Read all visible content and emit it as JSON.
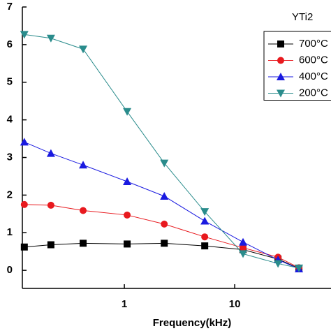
{
  "chart_data": {
    "type": "line",
    "annotation": "YTi2",
    "xlabel": "Frequency(kHz)",
    "xscale": "log",
    "x": [
      0.124,
      0.216,
      0.423,
      1.06,
      2.3,
      5.35,
      11.9,
      24.7,
      38.2
    ],
    "xlim": [
      0.119,
      74.6
    ],
    "xticks": [
      1,
      10
    ],
    "ylim": [
      -0.48,
      7
    ],
    "yticks": [
      0,
      1,
      2,
      3,
      4,
      5,
      6,
      7
    ],
    "legend": "upper right",
    "series": [
      {
        "name": "700°C",
        "color": "#000000",
        "marker": "square",
        "values": [
          0.62,
          0.68,
          0.72,
          0.7,
          0.72,
          0.65,
          0.55,
          0.3,
          0.05
        ]
      },
      {
        "name": "600°C",
        "color": "#e8191e",
        "marker": "circle",
        "values": [
          1.75,
          1.73,
          1.59,
          1.47,
          1.23,
          0.89,
          0.6,
          0.35,
          0.07
        ]
      },
      {
        "name": "400°C",
        "color": "#1a1ae0",
        "marker": "triangle-up",
        "values": [
          3.41,
          3.11,
          2.8,
          2.36,
          1.97,
          1.31,
          0.75,
          0.28,
          0.04
        ]
      },
      {
        "name": "200°C",
        "color": "#2a8c8c",
        "marker": "triangle-down",
        "values": [
          6.27,
          6.17,
          5.88,
          4.22,
          2.85,
          1.56,
          0.44,
          0.18,
          0.06
        ]
      }
    ]
  }
}
